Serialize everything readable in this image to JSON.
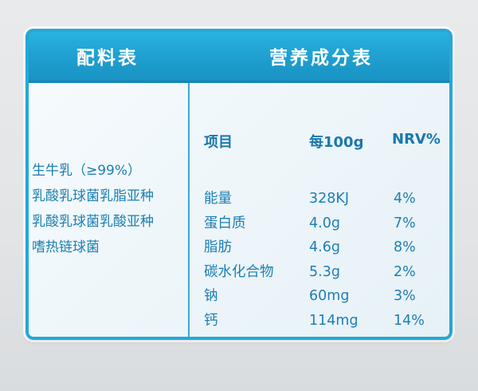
{
  "colors": {
    "header_blue": "#1e9fcf",
    "text_blue": "#1e7fb2",
    "body_bg": "#eef6fa"
  },
  "header": {
    "ingredients_title": "配料表",
    "nutrition_title": "营养成分表"
  },
  "ingredients": [
    "生牛乳（≥99%）",
    "乳酸乳球菌乳脂亚种",
    "乳酸乳球菌乳酸亚种",
    "嗜热链球菌"
  ],
  "nutrition": {
    "columns": {
      "item": "项目",
      "per_100g": "每100g",
      "nrv": "NRV%"
    },
    "rows": [
      {
        "item": "能量",
        "per_100g": "328KJ",
        "nrv": "4%"
      },
      {
        "item": "蛋白质",
        "per_100g": "4.0g",
        "nrv": "7%"
      },
      {
        "item": "脂肪",
        "per_100g": "4.6g",
        "nrv": "8%"
      },
      {
        "item": "碳水化合物",
        "per_100g": "5.3g",
        "nrv": "2%"
      },
      {
        "item": "钠",
        "per_100g": "60mg",
        "nrv": "3%"
      },
      {
        "item": "钙",
        "per_100g": "114mg",
        "nrv": "14%"
      }
    ]
  }
}
